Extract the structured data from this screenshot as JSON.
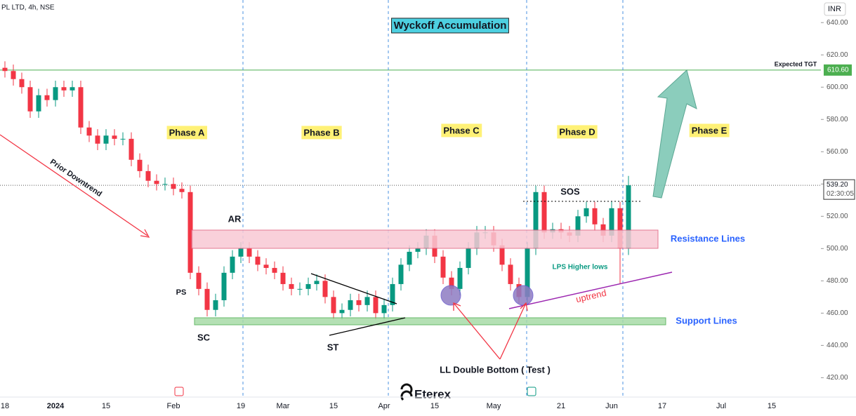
{
  "chart_data": {
    "type": "candlestick",
    "title": "PL LTD, 4h, NSE",
    "currency": "INR",
    "colors": {
      "up": "#089981",
      "down": "#f23645"
    },
    "categories": [
      "18",
      null,
      null,
      null,
      null,
      null,
      "2024",
      null,
      null,
      null,
      null,
      null,
      "15",
      null,
      null,
      null,
      null,
      null,
      null,
      null,
      "Feb",
      null,
      null,
      null,
      null,
      null,
      null,
      null,
      "19",
      null,
      null,
      null,
      null,
      "Mar",
      null,
      null,
      null,
      null,
      null,
      "15",
      null,
      null,
      null,
      null,
      null,
      "Apr",
      null,
      null,
      null,
      null,
      null,
      "15",
      null,
      null,
      null,
      null,
      null,
      null,
      "May",
      null,
      null,
      null,
      null,
      null,
      null,
      null,
      "21",
      null,
      null,
      null,
      null,
      null,
      "Jun",
      null,
      null,
      null,
      null,
      null,
      "17",
      null,
      null,
      null,
      null,
      null,
      null,
      "Jul",
      null,
      null,
      null,
      null,
      null,
      "15",
      null
    ],
    "open": [
      612,
      610,
      605,
      600,
      585,
      595,
      592,
      600,
      598,
      600,
      575,
      570,
      565,
      570,
      568,
      568,
      555,
      548,
      542,
      540,
      540,
      537,
      535,
      485,
      475,
      462,
      468,
      485,
      495,
      500,
      495,
      490,
      488,
      485,
      478,
      475,
      475,
      478,
      480,
      470,
      460,
      462,
      468,
      465,
      470,
      460,
      465,
      478,
      490,
      498,
      500,
      508,
      495,
      482,
      475,
      488,
      500,
      510,
      510,
      502,
      490,
      478,
      470,
      500,
      535,
      510,
      512,
      510,
      508,
      520,
      525,
      515,
      508,
      525,
      500,
      null,
      null,
      null,
      null,
      null,
      null,
      null,
      null,
      null,
      null,
      null,
      null,
      null,
      null,
      null,
      null,
      null,
      null
    ],
    "high": [
      616,
      614,
      609,
      604,
      599,
      599,
      604,
      604,
      604,
      604,
      579,
      574,
      574,
      574,
      572,
      572,
      559,
      552,
      546,
      544,
      544,
      541,
      539,
      489,
      479,
      472,
      489,
      499,
      504,
      504,
      499,
      494,
      492,
      489,
      482,
      479,
      482,
      484,
      484,
      474,
      466,
      472,
      472,
      474,
      474,
      469,
      482,
      494,
      502,
      504,
      512,
      512,
      499,
      486,
      492,
      504,
      514,
      514,
      514,
      506,
      494,
      482,
      504,
      539,
      539,
      516,
      516,
      514,
      524,
      529,
      529,
      519,
      529,
      529,
      545,
      null,
      null,
      null,
      null,
      null,
      null,
      null,
      null,
      null,
      null,
      null,
      null,
      null,
      null,
      null,
      null,
      null,
      null
    ],
    "low": [
      606,
      601,
      596,
      581,
      581,
      588,
      588,
      594,
      594,
      571,
      566,
      561,
      561,
      564,
      564,
      551,
      544,
      538,
      536,
      536,
      533,
      531,
      481,
      471,
      458,
      458,
      464,
      481,
      491,
      491,
      486,
      484,
      481,
      474,
      471,
      471,
      471,
      474,
      466,
      456,
      456,
      458,
      461,
      461,
      456,
      456,
      461,
      474,
      486,
      494,
      496,
      491,
      478,
      471,
      471,
      484,
      496,
      506,
      498,
      486,
      474,
      466,
      466,
      496,
      506,
      506,
      506,
      504,
      504,
      516,
      511,
      504,
      504,
      478,
      496,
      null,
      null,
      null,
      null,
      null,
      null,
      null,
      null,
      null,
      null,
      null,
      null,
      null,
      null,
      null,
      null,
      null,
      null
    ],
    "close": [
      610,
      605,
      600,
      585,
      595,
      592,
      600,
      598,
      600,
      575,
      570,
      565,
      570,
      568,
      568,
      555,
      548,
      542,
      540,
      540,
      537,
      535,
      485,
      475,
      462,
      468,
      485,
      495,
      500,
      495,
      490,
      488,
      485,
      478,
      475,
      475,
      478,
      480,
      470,
      460,
      462,
      468,
      465,
      470,
      460,
      465,
      478,
      490,
      498,
      500,
      508,
      495,
      482,
      475,
      488,
      500,
      510,
      510,
      502,
      490,
      478,
      470,
      500,
      535,
      510,
      512,
      510,
      508,
      520,
      525,
      515,
      508,
      525,
      500,
      539.2,
      null,
      null,
      null,
      null,
      null,
      null,
      null,
      null,
      null,
      null,
      null,
      null,
      null,
      null,
      null,
      null,
      null,
      null
    ],
    "ylim": [
      408,
      654
    ],
    "yticks": [
      {
        "value": 420,
        "label": "420.00"
      },
      {
        "value": 440,
        "label": "440.00"
      },
      {
        "value": 460,
        "label": "460.00"
      },
      {
        "value": 480,
        "label": "480.00"
      },
      {
        "value": 500,
        "label": "500.00"
      },
      {
        "value": 520,
        "label": "520.00"
      },
      {
        "value": 540,
        "label": "540.00"
      },
      {
        "value": 560,
        "label": "560.00"
      },
      {
        "value": 580,
        "label": "580.00"
      },
      {
        "value": 600,
        "label": "600.00"
      },
      {
        "value": 620,
        "label": "620.00"
      },
      {
        "value": 640,
        "label": "640.00"
      }
    ],
    "target": {
      "value": 610.6,
      "label": "610.60",
      "name": "Expected TGT"
    },
    "last_price": {
      "value": 539.2,
      "label": "539.20",
      "countdown": "02:30:05"
    },
    "annotations": {
      "heading": "Wyckoff Accumulation",
      "phases": [
        "Phase A",
        "Phase B",
        "Phase C",
        "Phase D",
        "Phase E"
      ],
      "prior_downtrend": "Prior Downtrend",
      "ar": "AR",
      "ps": "PS",
      "sc": "SC",
      "st": "ST",
      "sos": "SOS",
      "resistance": "Resistance Lines",
      "support": "Support Lines",
      "lps": "LPS Higher lows",
      "uptrend": "uptrend",
      "double_bottom": "LL Double Bottom ( Test )",
      "logo": "Eterex"
    }
  }
}
